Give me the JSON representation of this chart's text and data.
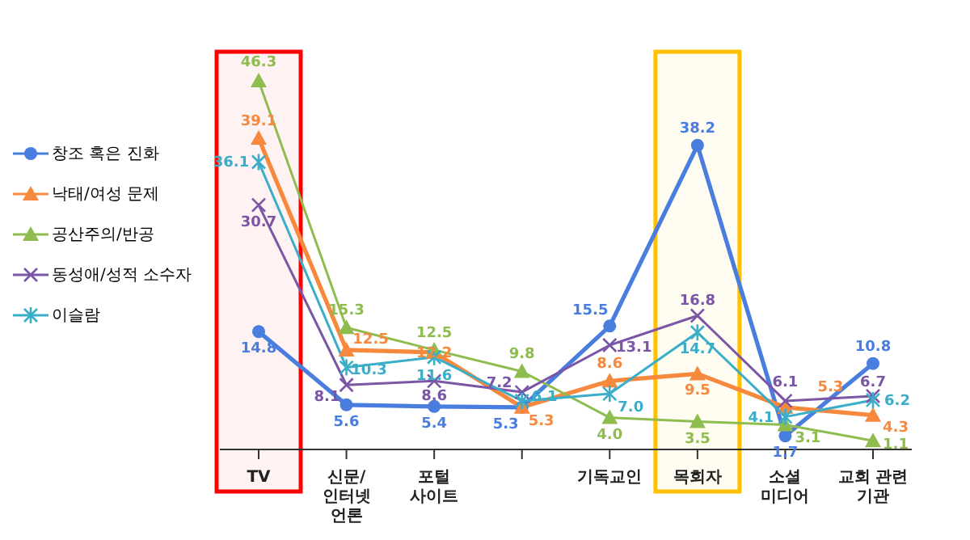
{
  "chart_data": {
    "type": "line",
    "categories": [
      "TV",
      "신문/인터넷 언론",
      "포털 사이트",
      null,
      "기독교인",
      "목회자",
      "소셜 미디어",
      "교회 관련 기관"
    ],
    "series": [
      {
        "name": "창조 혹은 진화",
        "color": "#4a7ede",
        "marker": "circle",
        "values": [
          14.8,
          5.6,
          5.4,
          5.3,
          15.5,
          38.2,
          1.7,
          10.8
        ],
        "value_labels": [
          "14.8",
          "5.6",
          "5.4",
          "5.3",
          "15.5",
          "38.2",
          "1.7",
          "10.8"
        ]
      },
      {
        "name": "낙태/여성 문제",
        "color": "#f6893d",
        "marker": "triangle",
        "values": [
          39.1,
          12.5,
          12.2,
          5.3,
          8.6,
          9.5,
          5.3,
          4.3
        ],
        "value_labels": [
          "39.1",
          "12.5",
          "12.2",
          "5.3",
          "8.6",
          "9.5",
          "5.3",
          "4.3"
        ]
      },
      {
        "name": "공산주의/반공",
        "color": "#8fbc4e",
        "marker": "triangle",
        "values": [
          46.3,
          15.3,
          12.5,
          9.8,
          4.0,
          3.5,
          3.1,
          1.1
        ],
        "value_labels": [
          "46.3",
          "15.3",
          "12.5",
          "9.8",
          "4.0",
          "3.5",
          "3.1",
          "1.1"
        ]
      },
      {
        "name": "동성애/성적 소수자",
        "color": "#7b55a6",
        "marker": "cross",
        "values": [
          30.7,
          8.1,
          8.6,
          7.2,
          13.1,
          16.8,
          6.1,
          6.7
        ],
        "value_labels": [
          "30.7",
          "8.1",
          "8.6",
          "7.2",
          "13.1",
          "16.8",
          "6.1",
          "6.7"
        ]
      },
      {
        "name": "이슬람",
        "color": "#3aaec8",
        "marker": "cross",
        "values": [
          36.1,
          10.3,
          11.6,
          6.1,
          7.0,
          14.7,
          4.1,
          6.2
        ],
        "value_labels": [
          "36.1",
          "10.3",
          "11.6",
          "6.1",
          "7.0",
          "14.7",
          "4.1",
          "6.2"
        ]
      }
    ],
    "legend": "left",
    "bands": [
      {
        "axis": "x",
        "from": "TV",
        "to": "TV",
        "color": "#ff0000"
      },
      {
        "axis": "x",
        "from": "목회자",
        "to": "목회자",
        "color": "#ffc000"
      }
    ]
  }
}
